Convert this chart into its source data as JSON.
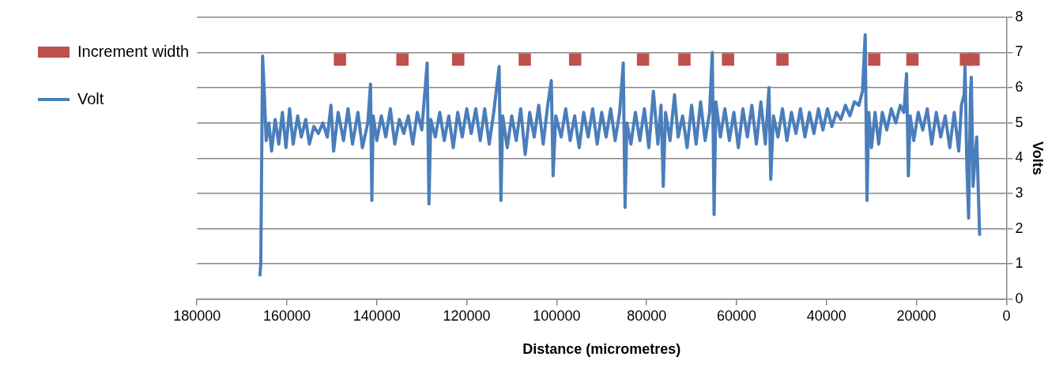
{
  "chart_data": {
    "type": "line",
    "xlabel": "Distance (micrometres)",
    "ylabel": "Volts",
    "xlim": [
      180000,
      0
    ],
    "xticks": [
      180000,
      160000,
      140000,
      120000,
      100000,
      80000,
      60000,
      40000,
      20000,
      0
    ],
    "ylim": [
      0,
      8
    ],
    "yticks": [
      0,
      1,
      2,
      3,
      4,
      5,
      6,
      7,
      8
    ],
    "grid": "y",
    "legend": "left",
    "series": [
      {
        "name": "Increment width",
        "type": "scatter",
        "marker": "square",
        "color": "#c0504d",
        "x": [
          148200,
          134300,
          121900,
          107100,
          95900,
          80800,
          71600,
          61900,
          49800,
          29400,
          20900,
          9000,
          7300
        ],
        "values": [
          6.8,
          6.8,
          6.8,
          6.8,
          6.8,
          6.8,
          6.8,
          6.8,
          6.8,
          6.8,
          6.8,
          6.8,
          6.8
        ]
      },
      {
        "name": "Volt",
        "type": "line",
        "marker": "none",
        "line_style": "solid",
        "color": "#4a7ebb",
        "x": [
          166000,
          165800,
          165400,
          165000,
          164600,
          164000,
          163400,
          162600,
          161800,
          161000,
          160200,
          159400,
          158600,
          157600,
          156800,
          155800,
          155000,
          154000,
          153000,
          152000,
          151000,
          150200,
          149600,
          148600,
          147400,
          146400,
          145400,
          144200,
          143200,
          142000,
          141400,
          141100,
          140800,
          140000,
          139000,
          138000,
          137000,
          136000,
          135000,
          134000,
          133000,
          132000,
          131000,
          130000,
          128800,
          128400,
          128000,
          127000,
          126000,
          125000,
          124000,
          123000,
          122000,
          121000,
          120000,
          119000,
          118000,
          117000,
          116000,
          115000,
          114000,
          112800,
          112400,
          112000,
          111000,
          110000,
          109000,
          108000,
          107000,
          106000,
          105000,
          104000,
          103000,
          102000,
          101200,
          100800,
          100200,
          99000,
          98000,
          97000,
          96000,
          95000,
          94000,
          93000,
          92000,
          91000,
          90000,
          89000,
          88000,
          87000,
          86000,
          85200,
          84800,
          84400,
          83500,
          82500,
          81500,
          80500,
          79500,
          78500,
          77500,
          76800,
          76300,
          75800,
          74800,
          73800,
          73000,
          72000,
          71000,
          70000,
          69000,
          68000,
          67000,
          66000,
          65400,
          65000,
          64600,
          63600,
          62600,
          61600,
          60600,
          59600,
          58600,
          57600,
          56600,
          55600,
          54600,
          53600,
          52800,
          52400,
          51800,
          50800,
          49800,
          48800,
          47800,
          46800,
          45800,
          44800,
          43800,
          42800,
          41800,
          40800,
          39800,
          38800,
          37800,
          36800,
          35800,
          34800,
          33800,
          32800,
          32000,
          31400,
          31000,
          30600,
          30000,
          29200,
          28400,
          27600,
          26600,
          25600,
          24600,
          23600,
          22800,
          22200,
          21800,
          21400,
          20600,
          19600,
          18600,
          17600,
          16600,
          15600,
          14600,
          13600,
          12600,
          11600,
          10600,
          10000,
          9400,
          9200,
          8800,
          8400,
          8000,
          7800,
          7400,
          7000,
          6600,
          6300,
          5950
        ],
        "values": [
          0.65,
          1.0,
          6.9,
          5.8,
          4.5,
          5.0,
          4.2,
          5.1,
          4.4,
          5.3,
          4.3,
          5.4,
          4.4,
          5.2,
          4.6,
          5.1,
          4.4,
          4.9,
          4.7,
          5.0,
          4.6,
          5.5,
          4.2,
          5.3,
          4.5,
          5.4,
          4.4,
          5.3,
          4.3,
          5.0,
          6.1,
          2.8,
          5.2,
          4.5,
          5.2,
          4.6,
          5.4,
          4.4,
          5.1,
          4.7,
          5.2,
          4.4,
          5.3,
          4.8,
          6.7,
          2.7,
          5.1,
          4.6,
          5.3,
          4.5,
          5.2,
          4.3,
          5.3,
          4.6,
          5.4,
          4.7,
          5.4,
          4.5,
          5.4,
          4.4,
          5.3,
          6.6,
          2.8,
          5.2,
          4.3,
          5.2,
          4.5,
          5.4,
          4.1,
          5.3,
          4.6,
          5.5,
          4.4,
          5.5,
          6.2,
          3.5,
          5.2,
          4.6,
          5.4,
          4.5,
          5.2,
          4.3,
          5.3,
          4.6,
          5.4,
          4.4,
          5.3,
          4.6,
          5.4,
          4.5,
          5.3,
          6.7,
          2.6,
          5.0,
          4.4,
          5.3,
          4.5,
          5.4,
          4.3,
          5.9,
          4.4,
          5.5,
          3.2,
          5.3,
          4.5,
          5.8,
          4.6,
          5.2,
          4.3,
          5.5,
          4.4,
          5.6,
          4.5,
          5.3,
          7.0,
          2.4,
          5.6,
          4.6,
          5.4,
          4.5,
          5.3,
          4.3,
          5.4,
          4.6,
          5.5,
          4.4,
          5.6,
          4.4,
          6.0,
          3.4,
          5.2,
          4.6,
          5.4,
          4.5,
          5.3,
          4.7,
          5.4,
          4.6,
          5.3,
          4.7,
          5.4,
          4.8,
          5.4,
          4.9,
          5.3,
          5.1,
          5.5,
          5.2,
          5.6,
          5.5,
          5.9,
          7.5,
          2.8,
          5.3,
          4.3,
          5.3,
          4.4,
          5.3,
          4.8,
          5.4,
          5.0,
          5.5,
          5.3,
          6.4,
          3.5,
          5.2,
          4.5,
          5.3,
          4.8,
          5.4,
          4.4,
          5.3,
          4.6,
          5.2,
          4.3,
          5.3,
          4.2,
          5.5,
          5.8,
          6.6,
          3.8,
          2.3,
          5.8,
          6.3,
          3.2,
          4.0,
          4.6,
          3.3,
          1.8
        ]
      }
    ]
  }
}
